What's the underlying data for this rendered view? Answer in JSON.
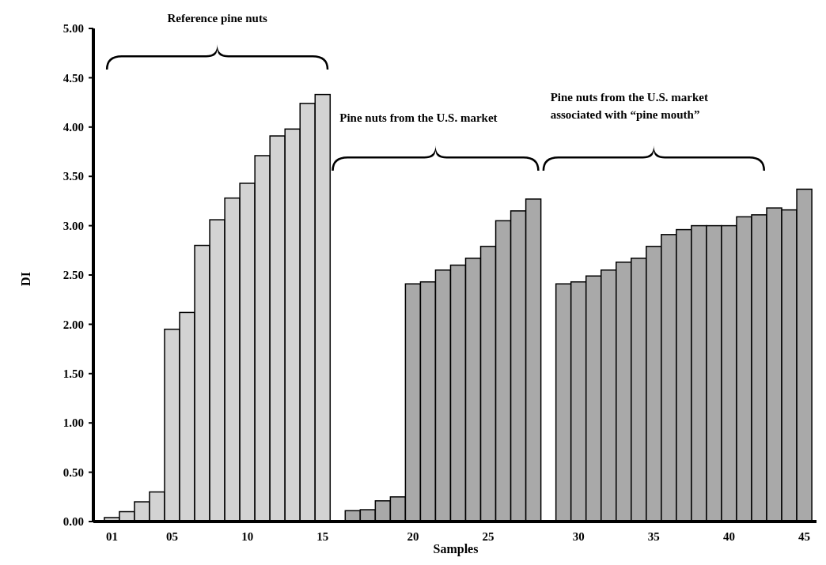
{
  "chart_data": {
    "type": "bar",
    "xlabel": "Samples",
    "ylabel": "DI",
    "categories": [
      "01",
      null,
      null,
      null,
      "05",
      null,
      null,
      null,
      null,
      "10",
      null,
      null,
      null,
      null,
      "15",
      null,
      null,
      null,
      null,
      null,
      "20",
      null,
      null,
      null,
      null,
      "25",
      null,
      null,
      null,
      null,
      null,
      "30",
      null,
      null,
      null,
      null,
      "35",
      null,
      null,
      null,
      null,
      "40",
      null,
      null,
      null,
      null,
      "45"
    ],
    "values": [
      0.04,
      0.1,
      0.2,
      0.3,
      1.95,
      2.12,
      2.8,
      3.06,
      3.28,
      3.43,
      3.71,
      3.91,
      3.98,
      4.24,
      4.33,
      null,
      0.11,
      0.12,
      0.21,
      0.25,
      2.41,
      2.43,
      2.55,
      2.6,
      2.67,
      2.79,
      3.05,
      3.15,
      3.27,
      null,
      2.41,
      2.43,
      2.49,
      2.55,
      2.63,
      2.67,
      2.79,
      2.91,
      2.96,
      3.0,
      3.0,
      3.0,
      3.09,
      3.11,
      3.18,
      3.16,
      3.37
    ],
    "colors": [
      "#d3d3d3",
      "#d3d3d3",
      "#d3d3d3",
      "#d3d3d3",
      "#d3d3d3",
      "#d3d3d3",
      "#d3d3d3",
      "#d3d3d3",
      "#d3d3d3",
      "#d3d3d3",
      "#d3d3d3",
      "#d3d3d3",
      "#d3d3d3",
      "#d3d3d3",
      "#d3d3d3",
      null,
      "#a9a9a9",
      "#a9a9a9",
      "#a9a9a9",
      "#a9a9a9",
      "#a9a9a9",
      "#a9a9a9",
      "#a9a9a9",
      "#a9a9a9",
      "#a9a9a9",
      "#a9a9a9",
      "#a9a9a9",
      "#a9a9a9",
      "#a9a9a9",
      null,
      "#a9a9a9",
      "#a9a9a9",
      "#a9a9a9",
      "#a9a9a9",
      "#a9a9a9",
      "#a9a9a9",
      "#a9a9a9",
      "#a9a9a9",
      "#a9a9a9",
      "#a9a9a9",
      "#a9a9a9",
      "#a9a9a9",
      "#a9a9a9",
      "#a9a9a9",
      "#a9a9a9",
      "#a9a9a9",
      "#a9a9a9"
    ],
    "ylim": [
      0,
      5
    ],
    "yticks": [
      {
        "value": 0,
        "label": "0.00"
      },
      {
        "value": 0.5,
        "label": "0.50"
      },
      {
        "value": 1,
        "label": "1.00"
      },
      {
        "value": 1.5,
        "label": "1.50"
      },
      {
        "value": 2,
        "label": "2.00"
      },
      {
        "value": 2.5,
        "label": "2.50"
      },
      {
        "value": 3,
        "label": "3.00"
      },
      {
        "value": 3.5,
        "label": "3.50"
      },
      {
        "value": 4,
        "label": "4.00"
      },
      {
        "value": 4.5,
        "label": "4.50"
      },
      {
        "value": 5,
        "label": "5.00"
      }
    ],
    "annotations": [
      "Reference pine nuts",
      "Pine nuts from the U.S. market",
      "Pine nuts from the U.S. market\nassociated with “pine mouth”"
    ]
  }
}
